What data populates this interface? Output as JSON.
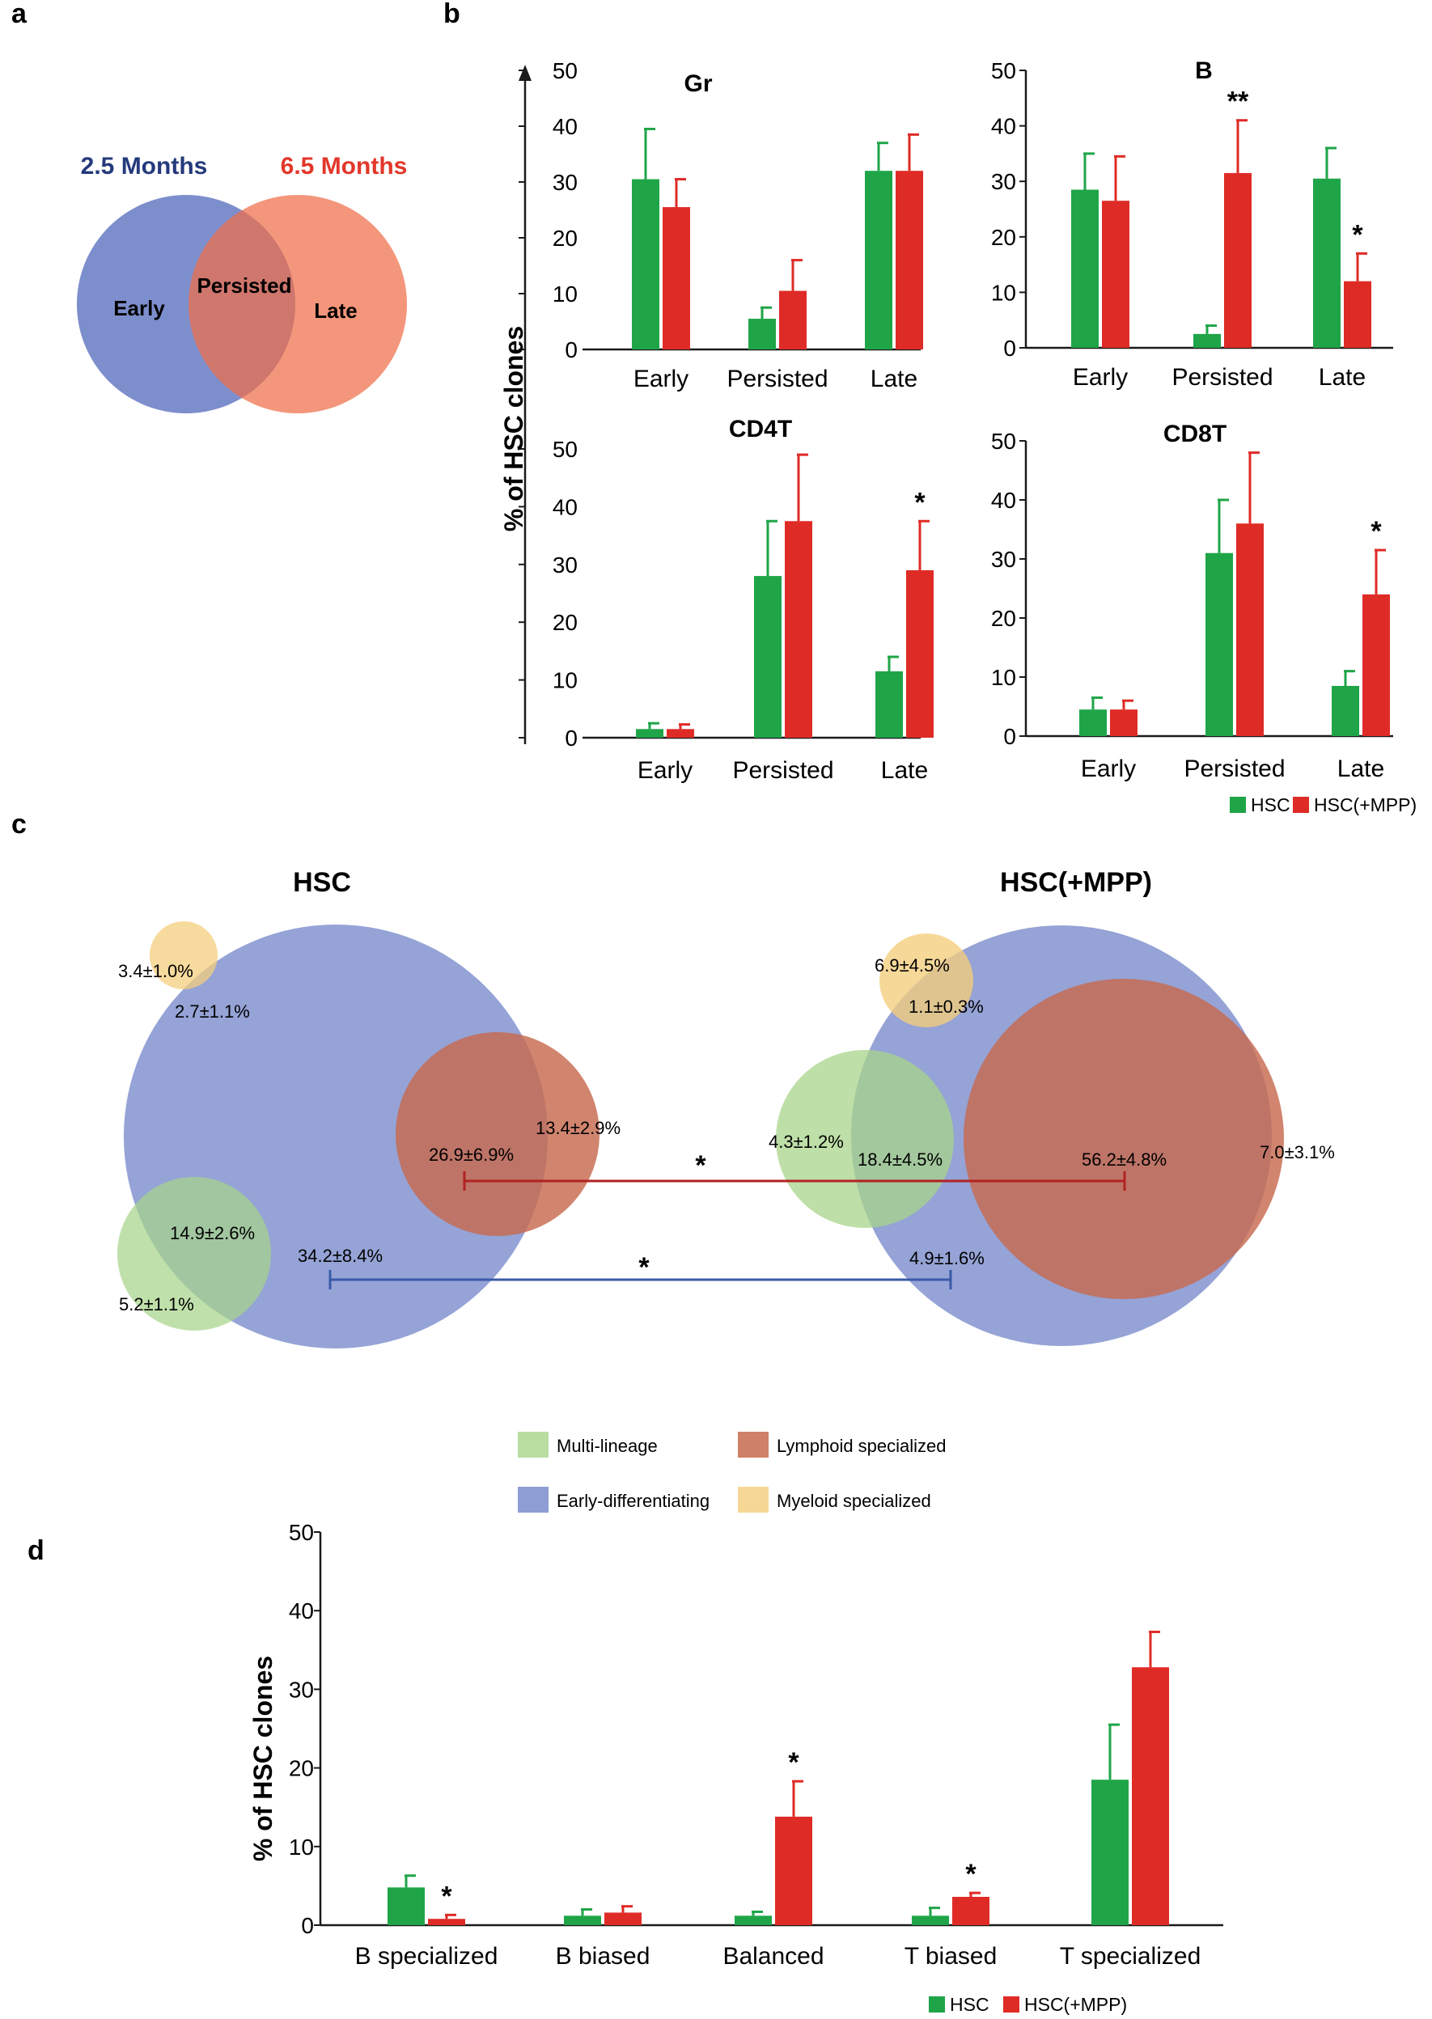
{
  "colors": {
    "hsc": "#1fa548",
    "hsc_mpp": "#df2b26",
    "multi": "#a8d48a",
    "early_diff": "#7a8ccc",
    "lymphoid": "#c76a4e",
    "myeloid": "#f4cd7c",
    "venn_left": "#7d8ecc",
    "venn_right": "#ef6e48",
    "title_left": "#253a7c",
    "title_right": "#e2372a",
    "line_red": "#b22222",
    "line_blue": "#3a5aa8"
  },
  "panels": {
    "a": "a",
    "b": "b",
    "c": "c",
    "d": "d"
  },
  "panel_a": {
    "left_title": "2.5 Months",
    "right_title": "6.5 Months",
    "left_label": "Early",
    "middle_label": "Persisted",
    "right_label": "Late"
  },
  "panel_b": {
    "ylabel": "% of HSC clones",
    "legend": {
      "hsc": "HSC",
      "hsc_mpp": "HSC(+MPP)"
    }
  },
  "panel_c": {
    "left_title": "HSC",
    "right_title": "HSC(+MPP)",
    "left_values": {
      "myeloid_only": "3.4±1.0%",
      "myeloid_overlap": "2.7±1.1%",
      "lymphoid_only": "13.4±2.9%",
      "lymphoid_overlap": "26.9±6.9%",
      "multi_overlap": "14.9±2.6%",
      "multi_only": "5.2±1.1%",
      "early_diff": "34.2±8.4%"
    },
    "right_values": {
      "myeloid_only": "6.9±4.5%",
      "myeloid_overlap": "1.1±0.3%",
      "multi_only": "4.3±1.2%",
      "multi_overlap": "18.4±4.5%",
      "lymphoid_overlap": "56.2±4.8%",
      "lymphoid_only": "7.0±3.1%",
      "early_diff": "4.9±1.6%"
    },
    "sig_red": "*",
    "sig_blue": "*",
    "legend": {
      "multi": "Multi-lineage",
      "lymphoid": "Lymphoid specialized",
      "early_diff": "Early-differentiating",
      "myeloid": "Myeloid specialized"
    }
  },
  "panel_d": {
    "ylabel": "% of HSC clones",
    "legend": {
      "hsc": "HSC",
      "hsc_mpp": "HSC(+MPP)"
    }
  },
  "chart_data": [
    {
      "type": "bar",
      "id": "b-gr",
      "title": "Gr",
      "categories": [
        "Early",
        "Persisted",
        "Late"
      ],
      "ylim": [
        0,
        50
      ],
      "yticks": [
        0,
        10,
        20,
        30,
        40,
        50
      ],
      "series": [
        {
          "name": "HSC",
          "values": [
            30.5,
            5.5,
            32
          ],
          "errors": [
            9,
            2,
            5
          ],
          "stars": [
            "",
            "",
            ""
          ]
        },
        {
          "name": "HSC(+MPP)",
          "values": [
            25.5,
            10.5,
            32
          ],
          "errors": [
            5,
            5.5,
            6.5
          ],
          "stars": [
            "",
            "",
            ""
          ]
        }
      ]
    },
    {
      "type": "bar",
      "id": "b-b",
      "title": "B",
      "categories": [
        "Early",
        "Persisted",
        "Late"
      ],
      "ylim": [
        0,
        50
      ],
      "yticks": [
        0,
        10,
        20,
        30,
        40,
        50
      ],
      "series": [
        {
          "name": "HSC",
          "values": [
            28.5,
            2.5,
            30.5
          ],
          "errors": [
            6.5,
            1.5,
            5.5
          ],
          "stars": [
            "",
            "",
            ""
          ]
        },
        {
          "name": "HSC(+MPP)",
          "values": [
            26.5,
            31.5,
            12
          ],
          "errors": [
            8,
            9.5,
            5
          ],
          "stars": [
            "",
            "**",
            "*"
          ]
        }
      ]
    },
    {
      "type": "bar",
      "id": "b-cd4t",
      "title": "CD4T",
      "categories": [
        "Early",
        "Persisted",
        "Late"
      ],
      "ylim": [
        0,
        50
      ],
      "yticks": [
        0,
        10,
        20,
        30,
        40,
        50
      ],
      "series": [
        {
          "name": "HSC",
          "values": [
            1.5,
            28,
            11.5
          ],
          "errors": [
            1,
            9.5,
            2.5
          ],
          "stars": [
            "",
            "",
            ""
          ]
        },
        {
          "name": "HSC(+MPP)",
          "values": [
            1.5,
            37.5,
            29
          ],
          "errors": [
            0.8,
            11.5,
            8.5
          ],
          "stars": [
            "",
            "",
            "*"
          ]
        }
      ]
    },
    {
      "type": "bar",
      "id": "b-cd8t",
      "title": "CD8T",
      "categories": [
        "Early",
        "Persisted",
        "Late"
      ],
      "ylim": [
        0,
        50
      ],
      "yticks": [
        0,
        10,
        20,
        30,
        40,
        50
      ],
      "series": [
        {
          "name": "HSC",
          "values": [
            4.5,
            31,
            8.5
          ],
          "errors": [
            2,
            9,
            2.5
          ],
          "stars": [
            "",
            "",
            ""
          ]
        },
        {
          "name": "HSC(+MPP)",
          "values": [
            4.5,
            36,
            24
          ],
          "errors": [
            1.5,
            12,
            7.5
          ],
          "stars": [
            "",
            "",
            "*"
          ]
        }
      ]
    },
    {
      "type": "bar",
      "id": "d",
      "categories": [
        "B specialized",
        "B biased",
        "Balanced",
        "T biased",
        "T specialized"
      ],
      "ylim": [
        0,
        50
      ],
      "yticks": [
        0,
        10,
        20,
        30,
        40,
        50
      ],
      "series": [
        {
          "name": "HSC",
          "values": [
            4.8,
            1.2,
            1.2,
            1.2,
            18.5
          ],
          "errors": [
            1.5,
            0.8,
            0.5,
            1,
            7
          ],
          "stars": [
            "",
            "",
            "",
            "",
            ""
          ]
        },
        {
          "name": "HSC(+MPP)",
          "values": [
            0.8,
            1.6,
            13.8,
            3.6,
            32.8
          ],
          "errors": [
            0.5,
            0.8,
            4.5,
            0.5,
            4.5
          ],
          "stars": [
            "*",
            "",
            "*",
            "*",
            ""
          ]
        }
      ]
    }
  ]
}
